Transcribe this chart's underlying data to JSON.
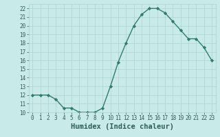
{
  "x": [
    0,
    1,
    2,
    3,
    4,
    5,
    6,
    7,
    8,
    9,
    10,
    11,
    12,
    13,
    14,
    15,
    16,
    17,
    18,
    19,
    20,
    21,
    22,
    23
  ],
  "y": [
    12,
    12,
    12,
    11.5,
    10.5,
    10.5,
    10,
    10,
    10,
    10.5,
    13,
    15.8,
    18,
    20,
    21.3,
    22,
    22,
    21.5,
    20.5,
    19.5,
    18.5,
    18.5,
    17.5,
    16
  ],
  "line_color": "#2e7d6e",
  "marker": "D",
  "marker_size": 2.2,
  "bg_color": "#c8eae8",
  "grid_color": "#aad4d0",
  "xlabel": "Humidex (Indice chaleur)",
  "xlim": [
    -0.5,
    23.5
  ],
  "ylim": [
    10,
    22.5
  ],
  "yticks": [
    10,
    11,
    12,
    13,
    14,
    15,
    16,
    17,
    18,
    19,
    20,
    21,
    22
  ],
  "xticks": [
    0,
    1,
    2,
    3,
    4,
    5,
    6,
    7,
    8,
    9,
    10,
    11,
    12,
    13,
    14,
    15,
    16,
    17,
    18,
    19,
    20,
    21,
    22,
    23
  ],
  "font_color": "#2e5a58",
  "tick_fontsize": 5.5,
  "xlabel_fontsize": 7.5
}
